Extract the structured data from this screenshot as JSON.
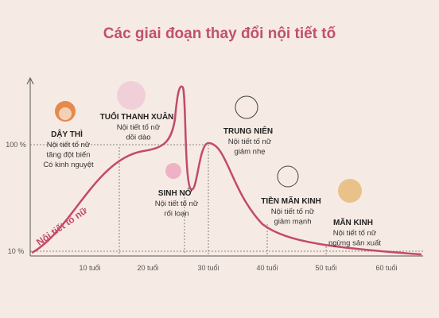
{
  "title": "Các giai đoạn thay đổi nội tiết tố",
  "y_axis": {
    "label": "Nội tiết tố nữ",
    "ticks": [
      "100 %",
      "10 %"
    ]
  },
  "x_axis": {
    "ticks": [
      "10 tuổi",
      "20 tuổi",
      "30 tuổi",
      "40 tuổi",
      "50 tuổi",
      "60 tuổi"
    ]
  },
  "stages": [
    {
      "name": "DẬY THÌ",
      "lines": [
        "Nội tiết tố nữ",
        "tăng đột biến",
        "Có kinh nguyệt"
      ]
    },
    {
      "name": "TUỔI THANH XUÂN",
      "lines": [
        "Nội tiết tố nữ",
        "dồi dào"
      ]
    },
    {
      "name": "SINH NỞ",
      "lines": [
        "Nội tiết tố nữ",
        "rối loạn"
      ]
    },
    {
      "name": "TRUNG NIÊN",
      "lines": [
        "Nội tiết tố nữ",
        "giảm nhẹ"
      ]
    },
    {
      "name": "TIỀN MÃN KINH",
      "lines": [
        "Nội tiết tố nữ",
        "giảm mạnh"
      ]
    },
    {
      "name": "MÃN KINH",
      "lines": [
        "Nội tiết tố nữ",
        "ngừng sản xuất"
      ]
    }
  ]
}
